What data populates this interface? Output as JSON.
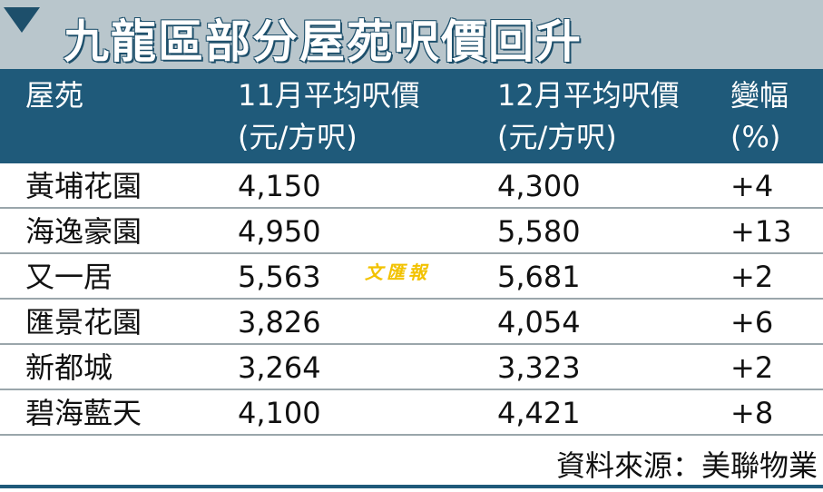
{
  "header": {
    "title": "九龍區部分屋苑呎價回升"
  },
  "table": {
    "columns": [
      [
        "屋苑"
      ],
      [
        "11月平均呎價",
        "(元/方呎)"
      ],
      [
        "12月平均呎價",
        "(元/方呎)"
      ],
      [
        "變幅",
        "(%)"
      ]
    ],
    "rows": [
      [
        "黃埔花園",
        "4,150",
        "4,300",
        "+4"
      ],
      [
        "海逸豪園",
        "4,950",
        "5,580",
        "+13"
      ],
      [
        "又一居",
        "5,563",
        "5,681",
        "+2"
      ],
      [
        "匯景花園",
        "3,826",
        "4,054",
        "+6"
      ],
      [
        "新都城",
        "3,264",
        "3,323",
        "+2"
      ],
      [
        "碧海藍天",
        "4,100",
        "4,421",
        "+8"
      ]
    ]
  },
  "watermark": "文匯報",
  "footer": {
    "source": "資料來源：美聯物業"
  }
}
